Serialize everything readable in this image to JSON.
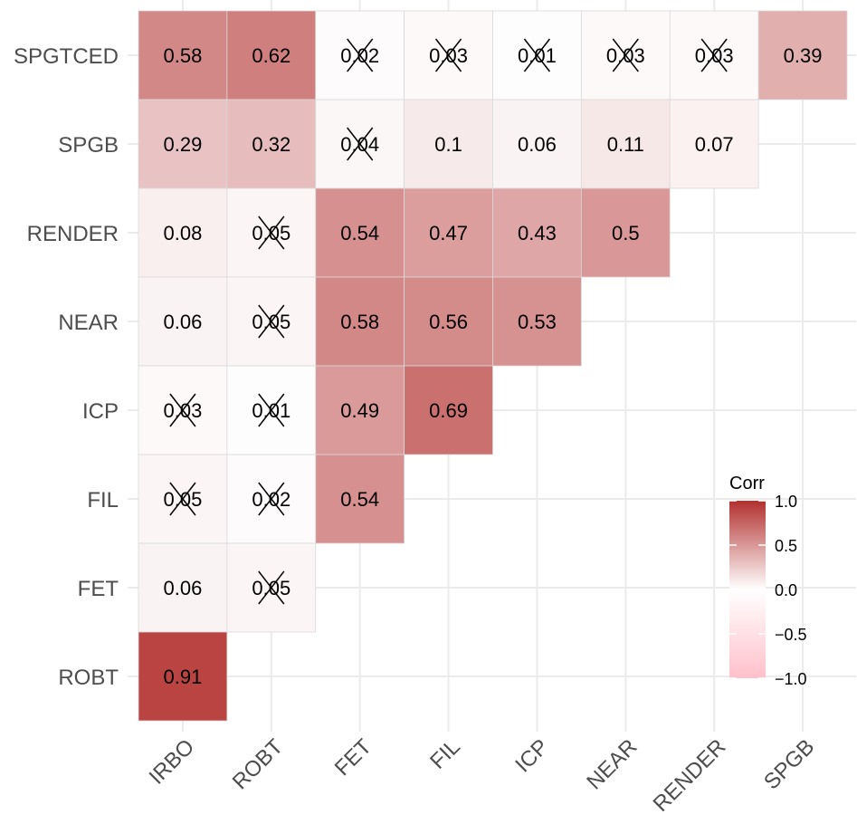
{
  "chart_data": {
    "type": "heatmap",
    "subtype": "correlation-lower-triangle",
    "x_categories": [
      "IRBO",
      "ROBT",
      "FET",
      "FIL",
      "ICP",
      "NEAR",
      "RENDER",
      "SPGB"
    ],
    "y_categories": [
      "ROBT",
      "FET",
      "FIL",
      "ICP",
      "NEAR",
      "RENDER",
      "SPGB",
      "SPGTCED"
    ],
    "cells": [
      {
        "y": "SPGTCED",
        "x": "IRBO",
        "value": 0.58,
        "label": "0.58",
        "insignificant": false
      },
      {
        "y": "SPGTCED",
        "x": "ROBT",
        "value": 0.62,
        "label": "0.62",
        "insignificant": false
      },
      {
        "y": "SPGTCED",
        "x": "FET",
        "value": 0.02,
        "label": "0.02",
        "insignificant": true
      },
      {
        "y": "SPGTCED",
        "x": "FIL",
        "value": 0.03,
        "label": "0.03",
        "insignificant": true
      },
      {
        "y": "SPGTCED",
        "x": "ICP",
        "value": 0.01,
        "label": "0.01",
        "insignificant": true
      },
      {
        "y": "SPGTCED",
        "x": "NEAR",
        "value": 0.03,
        "label": "0.03",
        "insignificant": true
      },
      {
        "y": "SPGTCED",
        "x": "RENDER",
        "value": 0.03,
        "label": "0.03",
        "insignificant": true
      },
      {
        "y": "SPGTCED",
        "x": "SPGB",
        "value": 0.39,
        "label": "0.39",
        "insignificant": false
      },
      {
        "y": "SPGB",
        "x": "IRBO",
        "value": 0.29,
        "label": "0.29",
        "insignificant": false
      },
      {
        "y": "SPGB",
        "x": "ROBT",
        "value": 0.32,
        "label": "0.32",
        "insignificant": false
      },
      {
        "y": "SPGB",
        "x": "FET",
        "value": 0.04,
        "label": "0.04",
        "insignificant": true
      },
      {
        "y": "SPGB",
        "x": "FIL",
        "value": 0.1,
        "label": "0.1",
        "insignificant": false
      },
      {
        "y": "SPGB",
        "x": "ICP",
        "value": 0.06,
        "label": "0.06",
        "insignificant": false
      },
      {
        "y": "SPGB",
        "x": "NEAR",
        "value": 0.11,
        "label": "0.11",
        "insignificant": false
      },
      {
        "y": "SPGB",
        "x": "RENDER",
        "value": 0.07,
        "label": "0.07",
        "insignificant": false
      },
      {
        "y": "RENDER",
        "x": "IRBO",
        "value": 0.08,
        "label": "0.08",
        "insignificant": false
      },
      {
        "y": "RENDER",
        "x": "ROBT",
        "value": 0.05,
        "label": "0.05",
        "insignificant": true
      },
      {
        "y": "RENDER",
        "x": "FET",
        "value": 0.54,
        "label": "0.54",
        "insignificant": false
      },
      {
        "y": "RENDER",
        "x": "FIL",
        "value": 0.47,
        "label": "0.47",
        "insignificant": false
      },
      {
        "y": "RENDER",
        "x": "ICP",
        "value": 0.43,
        "label": "0.43",
        "insignificant": false
      },
      {
        "y": "RENDER",
        "x": "NEAR",
        "value": 0.5,
        "label": "0.5",
        "insignificant": false
      },
      {
        "y": "NEAR",
        "x": "IRBO",
        "value": 0.06,
        "label": "0.06",
        "insignificant": false
      },
      {
        "y": "NEAR",
        "x": "ROBT",
        "value": 0.05,
        "label": "0.05",
        "insignificant": true
      },
      {
        "y": "NEAR",
        "x": "FET",
        "value": 0.58,
        "label": "0.58",
        "insignificant": false
      },
      {
        "y": "NEAR",
        "x": "FIL",
        "value": 0.56,
        "label": "0.56",
        "insignificant": false
      },
      {
        "y": "NEAR",
        "x": "ICP",
        "value": 0.53,
        "label": "0.53",
        "insignificant": false
      },
      {
        "y": "ICP",
        "x": "IRBO",
        "value": 0.03,
        "label": "0.03",
        "insignificant": true
      },
      {
        "y": "ICP",
        "x": "ROBT",
        "value": 0.01,
        "label": "0.01",
        "insignificant": true
      },
      {
        "y": "ICP",
        "x": "FET",
        "value": 0.49,
        "label": "0.49",
        "insignificant": false
      },
      {
        "y": "ICP",
        "x": "FIL",
        "value": 0.69,
        "label": "0.69",
        "insignificant": false
      },
      {
        "y": "FIL",
        "x": "IRBO",
        "value": 0.05,
        "label": "0.05",
        "insignificant": true
      },
      {
        "y": "FIL",
        "x": "ROBT",
        "value": 0.02,
        "label": "0.02",
        "insignificant": true
      },
      {
        "y": "FIL",
        "x": "FET",
        "value": 0.54,
        "label": "0.54",
        "insignificant": false
      },
      {
        "y": "FET",
        "x": "IRBO",
        "value": 0.06,
        "label": "0.06",
        "insignificant": false
      },
      {
        "y": "FET",
        "x": "ROBT",
        "value": 0.05,
        "label": "0.05",
        "insignificant": true
      },
      {
        "y": "ROBT",
        "x": "IRBO",
        "value": 0.91,
        "label": "0.91",
        "insignificant": false
      }
    ],
    "legend": {
      "title": "Corr",
      "placement": "right",
      "range": [
        -1,
        1
      ],
      "ticks": [
        {
          "value": 1,
          "label": "1.0"
        },
        {
          "value": 0.5,
          "label": "0.5"
        },
        {
          "value": 0,
          "label": "0.0"
        },
        {
          "value": -0.5,
          "label": "−0.5"
        },
        {
          "value": -1,
          "label": "−1.0"
        }
      ]
    },
    "colors": {
      "high": "#B2312F",
      "mid": "#FFFFFF",
      "low": "#FFC0CB",
      "grid": "#EBEBEB",
      "cell_border": "#D9D9D9",
      "tick_text": "#4D4D4D"
    },
    "grid": true,
    "title": "",
    "xlabel": "",
    "ylabel": ""
  }
}
